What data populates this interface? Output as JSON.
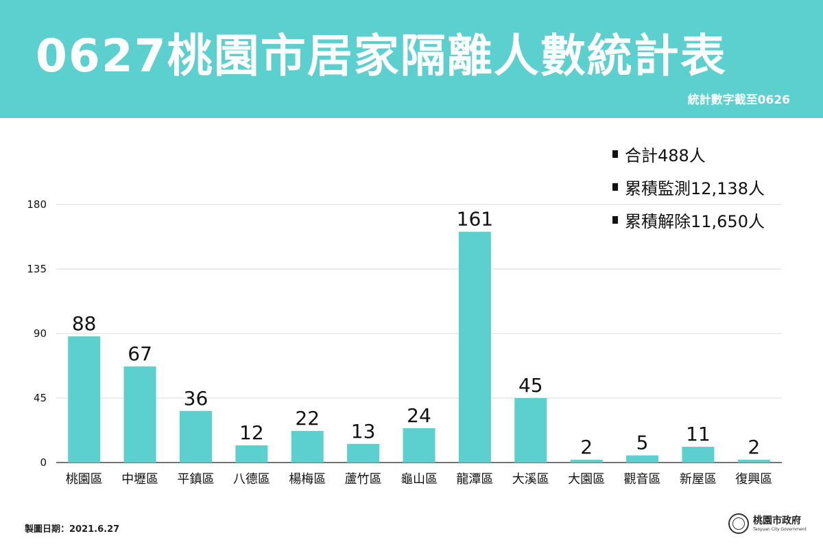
{
  "header": {
    "title": "0627桃園市居家隔離人數統計表",
    "subtitle": "統計數字截至0626"
  },
  "summary": [
    "合計488人",
    "累積監測12,138人",
    "累積解除11,650人"
  ],
  "chart_data": {
    "type": "bar",
    "categories": [
      "桃園區",
      "中壢區",
      "平鎮區",
      "八德區",
      "楊梅區",
      "蘆竹區",
      "龜山區",
      "龍潭區",
      "大溪區",
      "大園區",
      "觀音區",
      "新屋區",
      "復興區"
    ],
    "values": [
      88,
      67,
      36,
      12,
      22,
      13,
      24,
      161,
      45,
      2,
      5,
      11,
      2
    ],
    "yticks": [
      0,
      45,
      90,
      135,
      180
    ],
    "ylim": [
      0,
      180
    ],
    "grid": true,
    "bar_color": "#5ccfcf",
    "data_labels": true
  },
  "footer": {
    "date_text": "製圖日期：2021.6.27",
    "logo_cn": "桃園市政府",
    "logo_en": "Taoyuan City Government"
  },
  "colors": {
    "banner": "#5ccfcf",
    "grid": "#d9d9d9"
  }
}
